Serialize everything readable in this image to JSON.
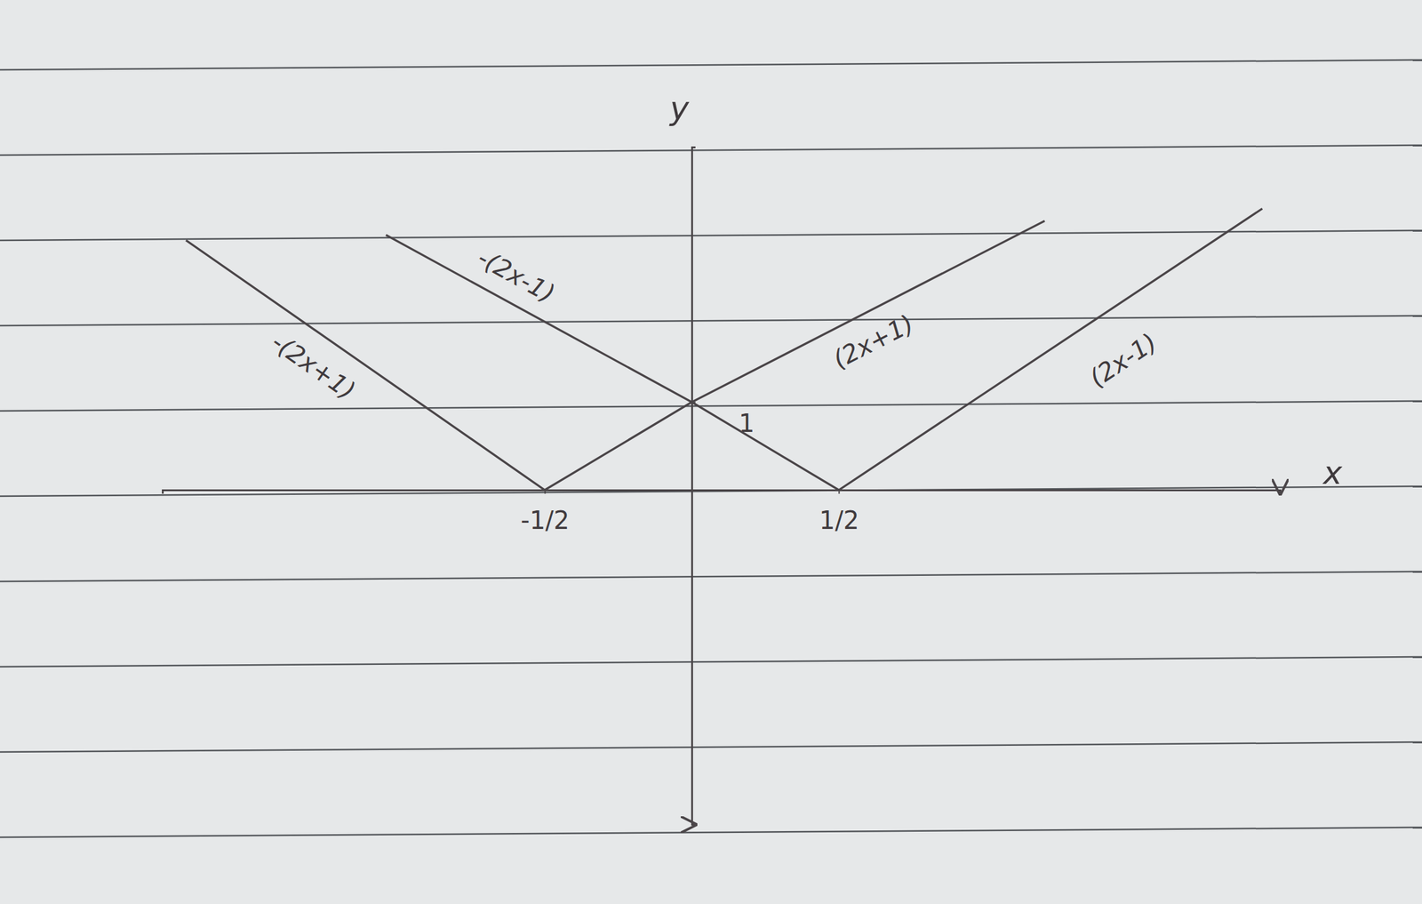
{
  "chart_data": {
    "type": "line",
    "x_label": "x",
    "y_label": "y",
    "xlim": [
      -1.8,
      2.0
    ],
    "ylim": [
      -3.8,
      3.9
    ],
    "xticks": [
      {
        "value": -0.5,
        "label": "-1/2"
      },
      {
        "value": 0.5,
        "label": "1/2"
      }
    ],
    "yticks": [
      1
    ],
    "grid": false,
    "series": [
      {
        "color": "#4a4548",
        "x": [
          -1.72,
          -0.5,
          0,
          1.2
        ],
        "values": [
          2.84,
          0,
          1,
          3.06
        ]
      },
      {
        "color": "#4a4548",
        "x": [
          -1.04,
          0,
          0.5,
          1.94
        ],
        "values": [
          2.9,
          1,
          0,
          3.2
        ]
      }
    ],
    "annotations": [
      {
        "text": "-(2x+1)",
        "x": -1.29,
        "y": 1.39
      },
      {
        "text": "-(2x-1)",
        "x": -0.6,
        "y": 2.42
      },
      {
        "text": "(2x+1)",
        "x": 0.62,
        "y": 1.67
      },
      {
        "text": "(2x-1)",
        "x": 1.47,
        "y": 1.46
      }
    ]
  }
}
